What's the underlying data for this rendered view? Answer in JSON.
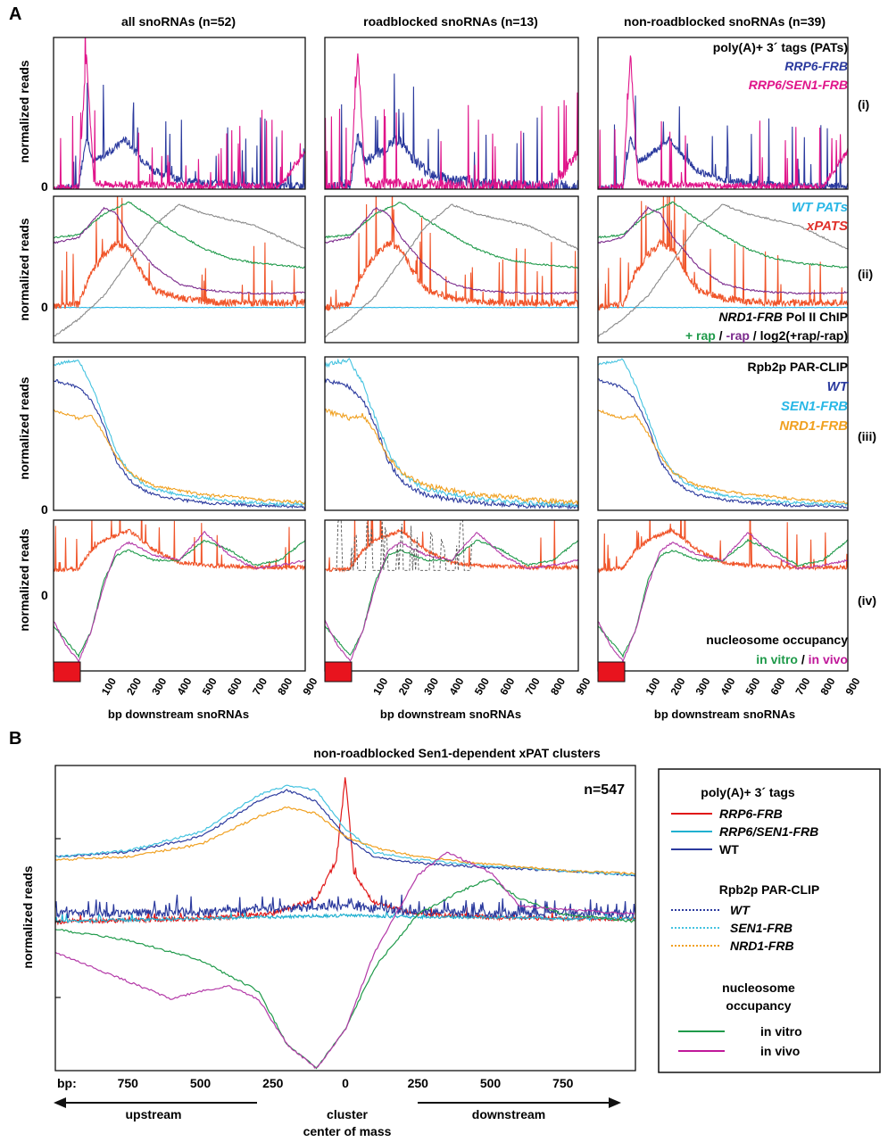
{
  "panel_a": {
    "letter": "A",
    "columns": [
      {
        "title": "all snoRNAs (n=52)"
      },
      {
        "title": "roadblocked snoRNAs (n=13)"
      },
      {
        "title": "non-roadblocked snoRNAs (n=39)"
      }
    ],
    "row_ylabel": "normalized reads",
    "zero_label": "0",
    "row_tags": [
      "(i)",
      "(ii)",
      "(iii)",
      "(iv)"
    ],
    "xlabel": "bp downstream snoRNAs",
    "x_ticks": [
      "100",
      "200",
      "300",
      "400",
      "500",
      "600",
      "700",
      "800",
      "900"
    ],
    "legends": {
      "row1": {
        "title": "poly(A)+ 3´ tags (PATs)",
        "s1": "RRP6-FRB",
        "s2": "RRP6/SEN1-FRB"
      },
      "row2": {
        "s1": "WT PATs",
        "s2": "xPATS",
        "title": "NRD1-FRB",
        "title_rest": " Pol II ChIP",
        "rap_plus": "+ rap",
        "sep1": " / ",
        "rap_minus": "-rap",
        "sep2": " / ",
        "ratio": "log2(+rap/-rap)"
      },
      "row3": {
        "title": "Rpb2p PAR-CLIP",
        "s1": "WT",
        "s2": "SEN1-FRB",
        "s3": "NRD1-FRB"
      },
      "row4": {
        "title": "nucleosome occupancy",
        "s1": "in vitro",
        "sep": " / ",
        "s2": "in vivo"
      }
    }
  },
  "panel_b": {
    "letter": "B",
    "title": "non-roadblocked Sen1-dependent xPAT clusters",
    "n_label": "n=547",
    "ylabel": "normalized reads",
    "bp_label": "bp:",
    "x_ticks": [
      "750",
      "500",
      "250",
      "0",
      "250",
      "500",
      "750"
    ],
    "upstream": "upstream",
    "downstream": "downstream",
    "center_line1": "cluster",
    "center_line2": "center of mass",
    "legend": {
      "g1_title": "poly(A)+ 3´ tags",
      "g1_items": [
        "RRP6-FRB",
        "RRP6/SEN1-FRB",
        "WT"
      ],
      "g2_title": "Rpb2p PAR-CLIP",
      "g2_items": [
        "WT",
        "SEN1-FRB",
        "NRD1-FRB"
      ],
      "g3_title1": "nucleosome",
      "g3_title2": "occupancy",
      "g3_items": [
        "in vitro",
        "in vivo"
      ]
    }
  },
  "colors": {
    "rrp6": "#2b3a9e",
    "rrp6_sen1": "#e0148a",
    "wt_pats": "#2ab7e6",
    "xpats": "#f0552a",
    "chip_plus": "#1f9a4a",
    "chip_minus": "#7b2a8c",
    "chip_ratio": "#8a8a8a",
    "wt": "#2b3a9e",
    "sen1": "#45c3e0",
    "nrd1": "#f0a020",
    "invitro": "#1f9a4a",
    "invivo": "#b43aa8",
    "b_rrp6": "#e01818",
    "b_rrp6_sen1": "#20b0d0",
    "b_wt": "#2b3a9e",
    "marker": "#e8141e"
  },
  "chart_data": [
    {
      "type": "line",
      "panel": "A(i)",
      "xlabel": "bp downstream snoRNAs",
      "ylabel": "normalized reads",
      "xlim": [
        -100,
        900
      ],
      "series": [
        {
          "name": "RRP6-FRB",
          "x": [
            -100,
            0,
            30,
            60,
            100,
            150,
            180,
            200,
            250,
            300,
            400,
            500,
            600,
            700,
            800,
            900
          ],
          "values": [
            0.0,
            0.02,
            0.35,
            0.18,
            0.22,
            0.28,
            0.33,
            0.3,
            0.2,
            0.12,
            0.06,
            0.04,
            0.03,
            0.02,
            0.02,
            0.02
          ]
        },
        {
          "name": "RRP6/SEN1-FRB",
          "x": [
            -100,
            0,
            30,
            60,
            100,
            200,
            300,
            400,
            500,
            600,
            700,
            800,
            900
          ],
          "values": [
            0.0,
            0.02,
            0.9,
            0.05,
            0.03,
            0.03,
            0.03,
            0.02,
            0.02,
            0.02,
            0.02,
            0.02,
            0.25
          ]
        }
      ]
    },
    {
      "type": "line",
      "panel": "A(ii)",
      "xlabel": "bp downstream snoRNAs",
      "ylabel": "normalized reads",
      "xlim": [
        -100,
        900
      ],
      "series": [
        {
          "name": "WT PATs",
          "x": [
            -100,
            900
          ],
          "values": [
            0.0,
            0.0
          ]
        },
        {
          "name": "xPATS",
          "x": [
            -100,
            0,
            50,
            100,
            150,
            200,
            250,
            300,
            400,
            500,
            600,
            700,
            800,
            900
          ],
          "values": [
            0.0,
            0.03,
            0.3,
            0.45,
            0.55,
            0.5,
            0.3,
            0.15,
            0.08,
            0.05,
            0.04,
            0.04,
            0.04,
            0.04
          ]
        },
        {
          "name": "+ rap",
          "x": [
            -100,
            0,
            100,
            200,
            300,
            400,
            500,
            600,
            700,
            800,
            900
          ],
          "values": [
            0.6,
            0.62,
            0.8,
            0.9,
            0.75,
            0.62,
            0.5,
            0.42,
            0.38,
            0.36,
            0.34
          ]
        },
        {
          "name": "-rap",
          "x": [
            -100,
            0,
            100,
            150,
            200,
            300,
            400,
            500,
            600,
            700,
            800,
            900
          ],
          "values": [
            0.55,
            0.6,
            0.85,
            0.8,
            0.6,
            0.35,
            0.2,
            0.15,
            0.13,
            0.12,
            0.12,
            0.13
          ]
        },
        {
          "name": "log2(+rap/-rap)",
          "x": [
            -100,
            0,
            100,
            200,
            300,
            400,
            500,
            600,
            700,
            800,
            900
          ],
          "values": [
            -0.25,
            -0.1,
            0.1,
            0.4,
            0.7,
            0.88,
            0.8,
            0.75,
            0.7,
            0.6,
            0.5
          ]
        }
      ]
    },
    {
      "type": "line",
      "panel": "A(iii)",
      "xlabel": "bp downstream snoRNAs",
      "ylabel": "normalized reads",
      "xlim": [
        -100,
        900
      ],
      "series": [
        {
          "name": "WT",
          "x": [
            -100,
            0,
            50,
            100,
            150,
            200,
            250,
            300,
            400,
            500,
            600,
            700,
            800,
            900
          ],
          "values": [
            0.85,
            0.8,
            0.72,
            0.55,
            0.32,
            0.2,
            0.14,
            0.1,
            0.07,
            0.05,
            0.04,
            0.03,
            0.03,
            0.02
          ]
        },
        {
          "name": "SEN1-FRB",
          "x": [
            -100,
            0,
            50,
            100,
            150,
            200,
            250,
            300,
            400,
            500,
            600,
            700,
            800,
            900
          ],
          "values": [
            0.95,
            0.98,
            0.82,
            0.6,
            0.38,
            0.25,
            0.18,
            0.14,
            0.1,
            0.08,
            0.06,
            0.05,
            0.04,
            0.04
          ]
        },
        {
          "name": "NRD1-FRB",
          "x": [
            -100,
            0,
            50,
            100,
            150,
            200,
            250,
            300,
            400,
            500,
            600,
            700,
            800,
            900
          ],
          "values": [
            0.65,
            0.6,
            0.62,
            0.5,
            0.35,
            0.25,
            0.2,
            0.16,
            0.13,
            0.1,
            0.09,
            0.07,
            0.06,
            0.05
          ]
        }
      ]
    },
    {
      "type": "line",
      "panel": "A(iv)",
      "xlabel": "bp downstream snoRNAs",
      "ylabel": "normalized reads",
      "xlim": [
        -100,
        900
      ],
      "series": [
        {
          "name": "xPATs",
          "x": [
            -100,
            0,
            50,
            100,
            150,
            200,
            250,
            300,
            400,
            500,
            600,
            700,
            800,
            900
          ],
          "values": [
            0.0,
            0.02,
            0.2,
            0.3,
            0.35,
            0.4,
            0.3,
            0.2,
            0.08,
            0.05,
            0.04,
            0.03,
            0.03,
            0.03
          ]
        },
        {
          "name": "in vitro",
          "x": [
            -100,
            -50,
            0,
            50,
            100,
            150,
            200,
            300,
            400,
            500,
            600,
            700,
            800,
            900
          ],
          "values": [
            -0.55,
            -0.7,
            -0.85,
            -0.6,
            -0.1,
            0.15,
            0.2,
            0.1,
            0.1,
            0.3,
            0.2,
            0.05,
            0.1,
            0.3
          ]
        },
        {
          "name": "in vivo",
          "x": [
            -100,
            -50,
            0,
            50,
            100,
            150,
            200,
            300,
            400,
            500,
            600,
            700,
            800,
            900
          ],
          "values": [
            -0.5,
            -0.75,
            -0.9,
            -0.6,
            -0.15,
            0.2,
            0.28,
            0.15,
            0.1,
            0.38,
            0.15,
            0.02,
            0.05,
            0.1
          ]
        }
      ]
    },
    {
      "type": "line",
      "panel": "B",
      "title": "non-roadblocked Sen1-dependent xPAT clusters",
      "ylabel": "normalized reads",
      "xlim": [
        -1000,
        1000
      ],
      "series": [
        {
          "name": "RRP6-FRB",
          "x": [
            -1000,
            -500,
            -250,
            -100,
            -30,
            0,
            30,
            100,
            250,
            500,
            750,
            1000
          ],
          "values": [
            0.0,
            0.02,
            0.05,
            0.15,
            0.4,
            0.95,
            0.3,
            0.12,
            0.05,
            0.03,
            0.02,
            0.02
          ]
        },
        {
          "name": "RRP6/SEN1-FRB",
          "x": [
            -1000,
            -500,
            -250,
            0,
            250,
            500,
            750,
            1000
          ],
          "values": [
            0.0,
            0.02,
            0.03,
            0.04,
            0.03,
            0.03,
            0.02,
            0.02
          ]
        },
        {
          "name": "WT",
          "x": [
            -1000,
            -500,
            -250,
            0,
            250,
            500,
            750,
            1000
          ],
          "values": [
            0.05,
            0.06,
            0.08,
            0.1,
            0.06,
            0.05,
            0.05,
            0.05
          ]
        },
        {
          "name": "Rpb2p WT",
          "x": [
            -1000,
            -750,
            -500,
            -300,
            -200,
            -100,
            0,
            100,
            250,
            500,
            750,
            1000
          ],
          "values": [
            0.42,
            0.45,
            0.55,
            0.78,
            0.85,
            0.78,
            0.55,
            0.42,
            0.38,
            0.35,
            0.33,
            0.3
          ]
        },
        {
          "name": "Rpb2p SEN1-FRB",
          "x": [
            -1000,
            -750,
            -500,
            -300,
            -200,
            -100,
            0,
            100,
            250,
            500,
            750,
            1000
          ],
          "values": [
            0.42,
            0.46,
            0.58,
            0.82,
            0.88,
            0.85,
            0.6,
            0.45,
            0.4,
            0.36,
            0.33,
            0.3
          ]
        },
        {
          "name": "Rpb2p NRD1-FRB",
          "x": [
            -1000,
            -750,
            -500,
            -300,
            -200,
            -100,
            0,
            100,
            250,
            500,
            750,
            1000
          ],
          "values": [
            0.4,
            0.42,
            0.5,
            0.68,
            0.74,
            0.7,
            0.55,
            0.48,
            0.42,
            0.37,
            0.33,
            0.31
          ]
        },
        {
          "name": "in vitro",
          "x": [
            -1000,
            -750,
            -500,
            -300,
            -200,
            -100,
            0,
            100,
            250,
            400,
            500,
            600,
            750,
            1000
          ],
          "values": [
            -0.05,
            -0.12,
            -0.25,
            -0.45,
            -0.8,
            -0.95,
            -0.7,
            -0.3,
            0.05,
            0.2,
            0.28,
            0.15,
            0.05,
            0.0
          ]
        },
        {
          "name": "in vivo",
          "x": [
            -1000,
            -800,
            -600,
            -500,
            -400,
            -300,
            -200,
            -100,
            0,
            100,
            250,
            350,
            500,
            600,
            750,
            1000
          ],
          "values": [
            -0.2,
            -0.35,
            -0.5,
            -0.45,
            -0.42,
            -0.5,
            -0.8,
            -0.95,
            -0.7,
            -0.2,
            0.3,
            0.45,
            0.32,
            0.1,
            0.08,
            0.05
          ]
        }
      ]
    }
  ]
}
